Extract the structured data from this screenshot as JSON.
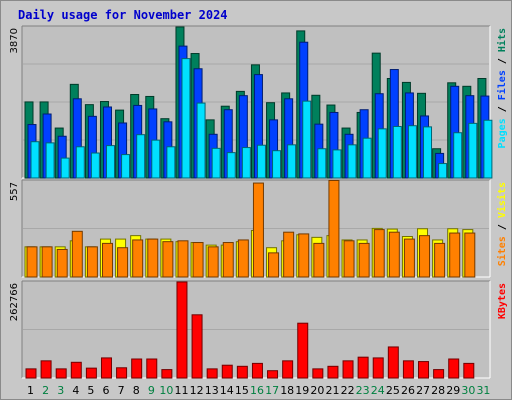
{
  "title": "Daily usage for November 2024",
  "colors": {
    "background": "#c8c8c8",
    "plot": "#c0c0c0",
    "hits": "#00805c",
    "files": "#0040ff",
    "pages": "#00e0ff",
    "visits": "#ffff00",
    "sites": "#ff8000",
    "kbytes": "#ff0000",
    "title": "#0000cc",
    "weekend_day": "#008040",
    "weekday": "#000000"
  },
  "chart_data": [
    {
      "type": "bar",
      "panel": "hits-files-pages",
      "ymax_label": "3870",
      "ylim": [
        0,
        3870
      ],
      "legend": [
        {
          "label": "Hits",
          "color": "#00805c"
        },
        {
          "label": "Files",
          "color": "#0040ff"
        },
        {
          "label": "Pages",
          "color": "#00e0ff"
        }
      ],
      "categories": [
        "1",
        "2",
        "3",
        "4",
        "5",
        "6",
        "7",
        "8",
        "9",
        "10",
        "11",
        "12",
        "13",
        "14",
        "15",
        "16",
        "17",
        "18",
        "19",
        "20",
        "21",
        "22",
        "23",
        "24",
        "25",
        "26",
        "27",
        "28",
        "29",
        "30",
        "31"
      ],
      "series": [
        {
          "name": "Hits",
          "values": [
            1950,
            1950,
            1280,
            2400,
            1880,
            1960,
            1740,
            2140,
            2090,
            1520,
            3870,
            3190,
            1490,
            1840,
            2220,
            2900,
            1930,
            2180,
            3770,
            2120,
            1870,
            1280,
            1680,
            3200,
            2550,
            2450,
            2170,
            750,
            2440,
            2350,
            2550
          ]
        },
        {
          "name": "Files",
          "values": [
            1370,
            1640,
            1070,
            2030,
            1580,
            1820,
            1410,
            1860,
            1770,
            1440,
            3380,
            2800,
            1120,
            1750,
            2110,
            2650,
            1490,
            2030,
            3480,
            1380,
            1680,
            1120,
            1750,
            2160,
            2780,
            2180,
            1590,
            630,
            2350,
            2110,
            2100
          ]
        },
        {
          "name": "Pages",
          "values": [
            930,
            900,
            510,
            800,
            640,
            830,
            600,
            1110,
            970,
            800,
            3060,
            1920,
            760,
            650,
            780,
            840,
            700,
            850,
            1970,
            750,
            720,
            850,
            1020,
            1260,
            1320,
            1340,
            1310,
            370,
            1160,
            1400,
            1480
          ]
        }
      ]
    },
    {
      "type": "bar",
      "panel": "visits-sites",
      "ymax_label": "557",
      "ylim": [
        0,
        557
      ],
      "legend": [
        {
          "label": "Visits",
          "color": "#ffff00"
        },
        {
          "label": "Sites",
          "color": "#ff8000"
        }
      ],
      "categories": [
        "1",
        "2",
        "3",
        "4",
        "5",
        "6",
        "7",
        "8",
        "9",
        "10",
        "11",
        "12",
        "13",
        "14",
        "15",
        "16",
        "17",
        "18",
        "19",
        "20",
        "21",
        "22",
        "23",
        "24",
        "25",
        "26",
        "27",
        "28",
        "29",
        "30",
        "31"
      ],
      "series": [
        {
          "name": "Visits",
          "values": [
            175,
            175,
            175,
            210,
            175,
            220,
            220,
            240,
            220,
            220,
            205,
            200,
            185,
            185,
            205,
            270,
            170,
            210,
            245,
            230,
            240,
            215,
            215,
            282,
            278,
            235,
            280,
            215,
            280,
            275,
            0
          ]
        },
        {
          "name": "Sites",
          "values": [
            175,
            175,
            160,
            265,
            175,
            195,
            170,
            215,
            220,
            205,
            210,
            200,
            175,
            200,
            215,
            545,
            140,
            260,
            250,
            195,
            560,
            210,
            195,
            275,
            260,
            220,
            240,
            195,
            255,
            255,
            0
          ]
        }
      ]
    },
    {
      "type": "bar",
      "panel": "kbytes",
      "ymax_label": "262766",
      "ylim": [
        0,
        262766
      ],
      "legend": [
        {
          "label": "KBytes",
          "color": "#ff0000"
        }
      ],
      "categories": [
        "1",
        "2",
        "3",
        "4",
        "5",
        "6",
        "7",
        "8",
        "9",
        "10",
        "11",
        "12",
        "13",
        "14",
        "15",
        "16",
        "17",
        "18",
        "19",
        "20",
        "21",
        "22",
        "23",
        "24",
        "25",
        "26",
        "27",
        "28",
        "29",
        "30",
        "31"
      ],
      "series": [
        {
          "name": "KBytes",
          "values": [
            25000,
            47000,
            25000,
            43000,
            27000,
            55000,
            28000,
            52000,
            52000,
            23000,
            262766,
            173000,
            25000,
            35000,
            32000,
            40000,
            20000,
            47000,
            150000,
            25000,
            32000,
            47000,
            57000,
            55000,
            85000,
            47000,
            45000,
            23000,
            52000,
            40000,
            0
          ]
        }
      ]
    }
  ],
  "x_days": [
    "1",
    "2",
    "3",
    "4",
    "5",
    "6",
    "7",
    "8",
    "9",
    "10",
    "11",
    "12",
    "13",
    "14",
    "15",
    "16",
    "17",
    "18",
    "19",
    "20",
    "21",
    "22",
    "23",
    "24",
    "25",
    "26",
    "27",
    "28",
    "29",
    "30",
    "31"
  ],
  "weekend_days": [
    "2",
    "3",
    "9",
    "10",
    "16",
    "17",
    "23",
    "24",
    "30",
    "31"
  ]
}
